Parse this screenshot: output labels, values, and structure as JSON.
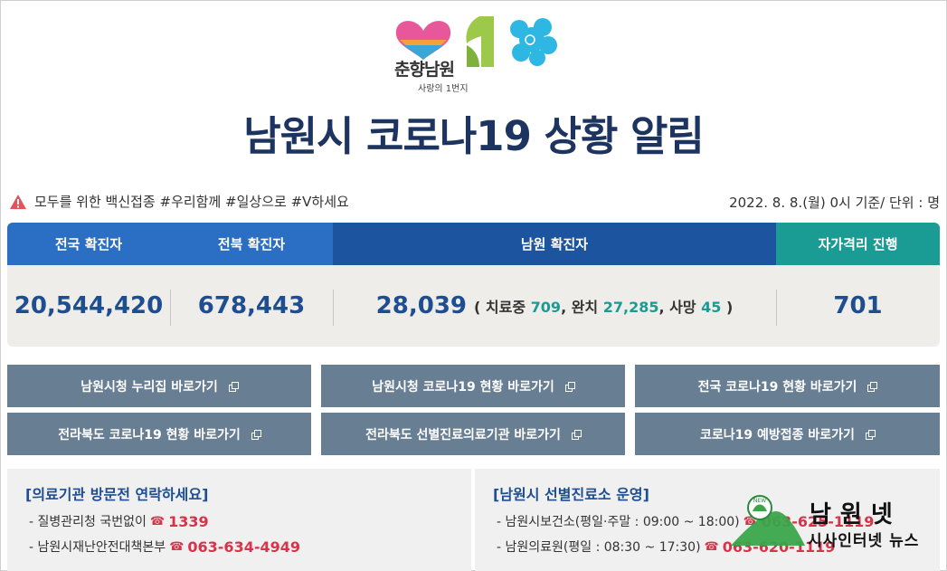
{
  "logo": {
    "brand": "춘향남원",
    "slogan": "사랑의 1번지"
  },
  "title": "남원시 코로나19 상황 알림",
  "notice": {
    "text": "모두를 위한 백신접종 #우리함께 #일상으로 #V하세요",
    "date_unit": "2022. 8. 8.(월) 0시 기준/ 단위 : 명"
  },
  "stats": {
    "headers": {
      "national": "전국 확진자",
      "jeonbuk": "전북 확진자",
      "namwon": "남원 확진자",
      "self_isolation": "자가격리 진행"
    },
    "national": "20,544,420",
    "jeonbuk": "678,443",
    "namwon": {
      "total": "28,039",
      "open": "(",
      "treating_label": "치료중",
      "treating": "709",
      "recovered_label": ", 완치",
      "recovered": "27,285",
      "deaths_label": ", 사망",
      "deaths": "45",
      "close": ")"
    },
    "self_isolation": "701"
  },
  "links": [
    {
      "label": "남원시청 누리집 바로가기"
    },
    {
      "label": "남원시청 코로나19 현황 바로가기"
    },
    {
      "label": "전국 코로나19 현황 바로가기"
    },
    {
      "label": "전라북도 코로나19 현황 바로가기"
    },
    {
      "label": "전라북도 선별진료의료기관 바로가기"
    },
    {
      "label": "코로나19 예방접종 바로가기"
    }
  ],
  "info_left": {
    "title": "[의료기관 방문전 연락하세요]",
    "rows": [
      {
        "label": "- 질병관리청 국번없이",
        "phone": "1339"
      },
      {
        "label": "- 남원시재난안전대책본부",
        "phone": "063-634-4949"
      }
    ]
  },
  "info_right": {
    "title": "[남원시 선별진료소 운영]",
    "rows": [
      {
        "label": "- 남원시보건소(평일·주말 : 09:00 ~ 18:00)",
        "phone": "063-625-1119"
      },
      {
        "label": "- 남원의료원(평일 : 08:30 ~ 17:30)",
        "phone": "063-620-1119"
      }
    ]
  },
  "watermark": {
    "title": "남원넷",
    "subtitle": "시사인터넷 뉴스",
    "badge": "NEW"
  },
  "colors": {
    "title": "#1e3460",
    "accent_blue": "#1e4e91",
    "teal": "#1a9b93",
    "button": "#687e93",
    "phone": "#d6344a"
  }
}
